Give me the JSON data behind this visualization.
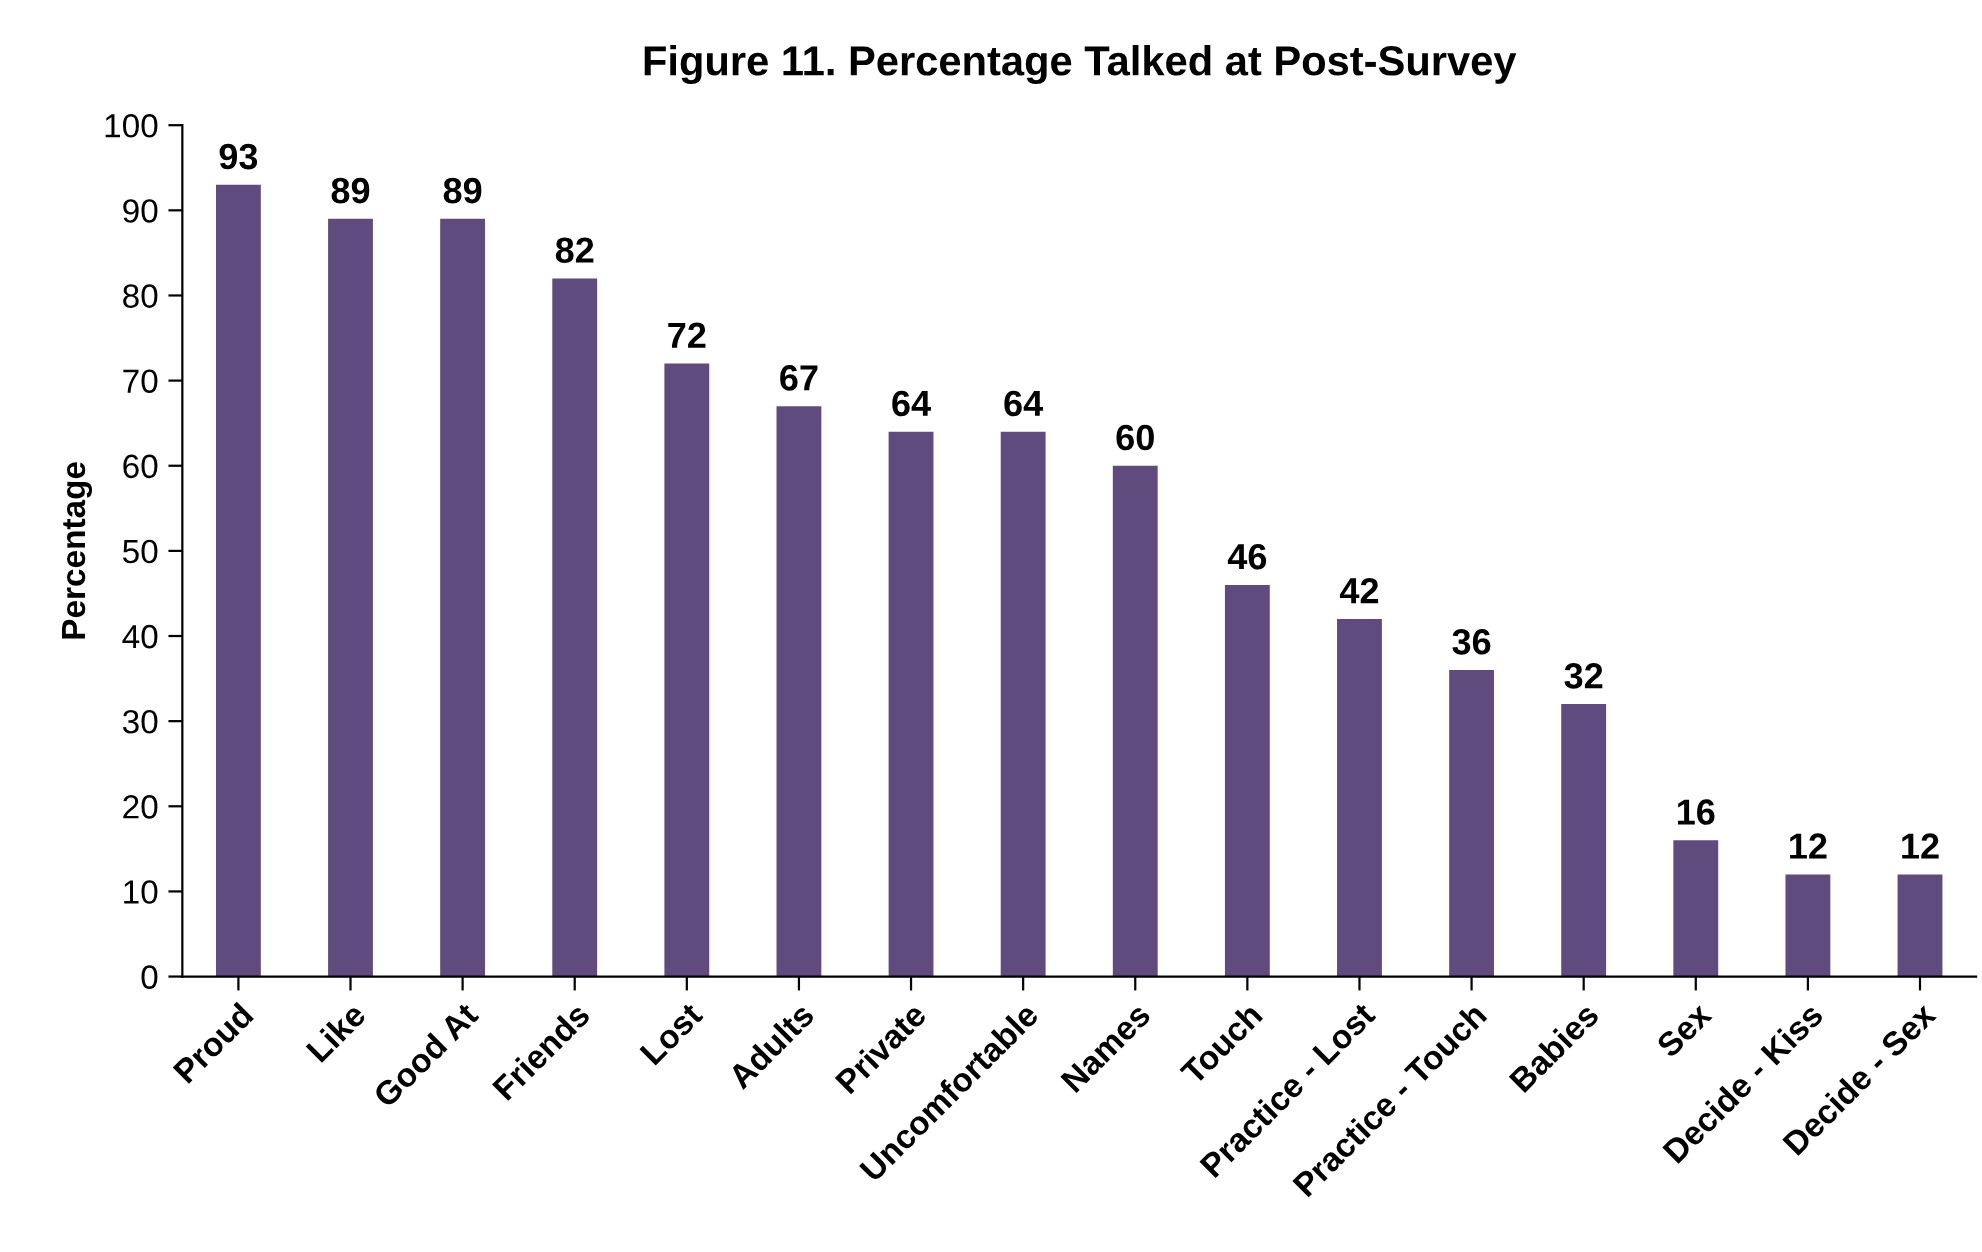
{
  "chart_data": {
    "type": "bar",
    "title": "Figure 11. Percentage Talked at Post-Survey",
    "ylabel": "Percentage",
    "categories": [
      "Proud",
      "Like",
      "Good At",
      "Friends",
      "Lost",
      "Adults",
      "Private",
      "Uncomfortable",
      "Names",
      "Touch",
      "Practice - Lost",
      "Practice - Touch",
      "Babies",
      "Sex",
      "Decide - Kiss",
      "Decide - Sex"
    ],
    "values": [
      93,
      89,
      89,
      82,
      72,
      67,
      64,
      64,
      60,
      46,
      42,
      36,
      32,
      16,
      12,
      12
    ],
    "color": "#5f4b7d",
    "ylim": [
      0,
      100
    ],
    "yticks": [
      0,
      10,
      20,
      30,
      40,
      50,
      60,
      70,
      80,
      90,
      100
    ],
    "grid": false,
    "legend": false,
    "data_labels": true
  }
}
